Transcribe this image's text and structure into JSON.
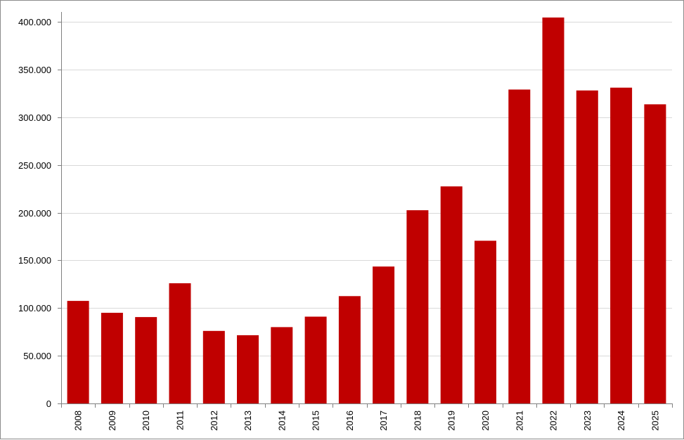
{
  "chart_data": {
    "type": "bar",
    "title": "",
    "xlabel": "",
    "ylabel": "",
    "categories": [
      "2008",
      "2009",
      "2010",
      "2011",
      "2012",
      "2013",
      "2014",
      "2015",
      "2016",
      "2017",
      "2018",
      "2019",
      "2020",
      "2021",
      "2022",
      "2023",
      "2024",
      "2025"
    ],
    "values": [
      107500,
      95000,
      90500,
      126000,
      76000,
      71500,
      80000,
      91000,
      112500,
      143500,
      202500,
      227500,
      170500,
      329000,
      404500,
      328000,
      331000,
      313500
    ],
    "ylim": [
      0,
      400000
    ],
    "yticks": [
      0,
      50000,
      100000,
      150000,
      200000,
      250000,
      300000,
      350000,
      400000
    ],
    "ytick_labels": [
      "0",
      "50.000",
      "100.000",
      "150.000",
      "200.000",
      "250.000",
      "300.000",
      "350.000",
      "400.000"
    ],
    "grid": true,
    "legend": "none",
    "colors": {
      "bar": "#c00000",
      "grid": "#d9d9d9",
      "axis": "#808080"
    }
  }
}
